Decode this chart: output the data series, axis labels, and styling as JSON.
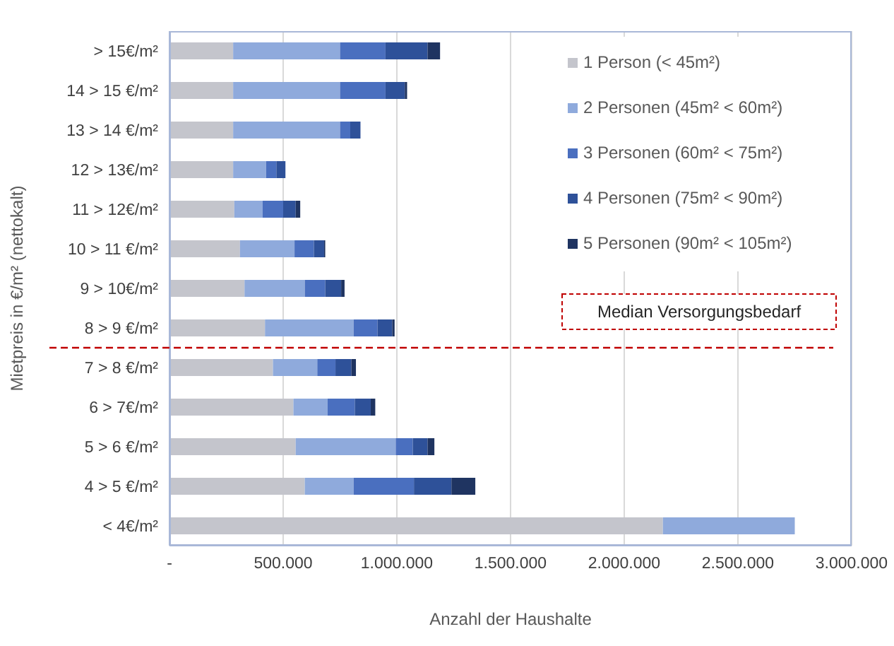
{
  "chart_data": {
    "type": "bar",
    "orientation": "horizontal",
    "stacked": true,
    "xlabel": "Anzahl der Haushalte",
    "ylabel": "Mietpreis in €/m² (nettokalt)",
    "categories": [
      "> 15€/m²",
      "14 > 15 €/m²",
      "13 > 14 €/m²",
      "12 > 13€/m²",
      "11 > 12€/m²",
      "10 > 11 €/m²",
      "9 > 10€/m²",
      "8 > 9 €/m²",
      "7 > 8 €/m²",
      "6 > 7€/m²",
      "5 > 6 €/m²",
      "4 > 5 €/m²",
      "< 4€/m²"
    ],
    "series": [
      {
        "name": "1 Person (< 45m²)",
        "color": "#c4c5cc",
        "values": [
          280000,
          280000,
          280000,
          280000,
          285000,
          310000,
          330000,
          420000,
          455000,
          545000,
          555000,
          595000,
          2170000
        ]
      },
      {
        "name": "2 Personen (45m² < 60m²)",
        "color": "#8faadc",
        "values": [
          470000,
          470000,
          470000,
          145000,
          125000,
          240000,
          265000,
          390000,
          195000,
          150000,
          440000,
          215000,
          580000
        ]
      },
      {
        "name": "3 Personen (60m² < 75m²)",
        "color": "#4a6fbf",
        "values": [
          200000,
          200000,
          45000,
          45000,
          90000,
          85000,
          90000,
          105000,
          80000,
          120000,
          75000,
          265000,
          0
        ]
      },
      {
        "name": "4 Personen (75m² < 90m²)",
        "color": "#2e5199",
        "values": [
          185000,
          85000,
          45000,
          40000,
          55000,
          45000,
          70000,
          65000,
          70000,
          70000,
          65000,
          165000,
          0
        ]
      },
      {
        "name": "5 Personen (90m² < 105m²)",
        "color": "#1f3461",
        "values": [
          55000,
          10000,
          0,
          0,
          20000,
          5000,
          15000,
          10000,
          20000,
          20000,
          30000,
          105000,
          0
        ]
      }
    ],
    "xlim": [
      0,
      3000000
    ],
    "xticks": [
      {
        "value": 0,
        "label": "-"
      },
      {
        "value": 500000,
        "label": "500.000"
      },
      {
        "value": 1000000,
        "label": "1.000.000"
      },
      {
        "value": 1500000,
        "label": "1.500.000"
      },
      {
        "value": 2000000,
        "label": "2.000.000"
      },
      {
        "value": 2500000,
        "label": "2.500.000"
      },
      {
        "value": 3000000,
        "label": "3.000.000"
      }
    ],
    "grid": "x",
    "legend": "top right",
    "ref_lines": [
      {
        "axis": "y",
        "value": "8 > 9 €/m²",
        "label": "Median Versorgungsbedarf",
        "color": "#c00000",
        "line_style": "dashed"
      }
    ]
  }
}
